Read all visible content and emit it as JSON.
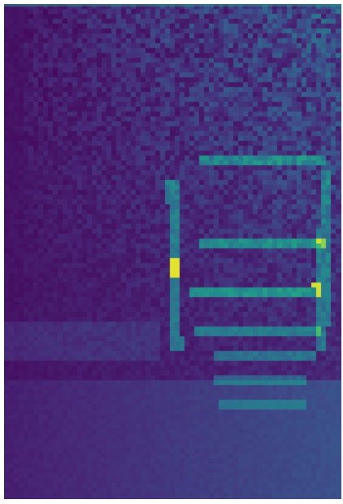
{
  "image": {
    "description_color_palette": {
      "low": "#440154",
      "low_mid": "#3b528b",
      "mid": "#21918c",
      "high_mid": "#5ec962",
      "high": "#fde725"
    }
  }
}
